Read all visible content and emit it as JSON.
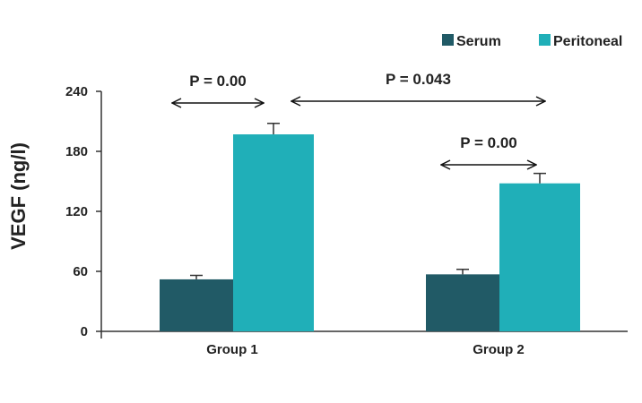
{
  "chart_data": {
    "type": "bar",
    "title": "",
    "xlabel": "",
    "ylabel": "VEGF (ng/l)",
    "ylim": [
      0,
      240
    ],
    "yticks": [
      0,
      60,
      120,
      180,
      240
    ],
    "grid": false,
    "legend_position": "top-right",
    "categories": [
      "Group 1",
      "Group 2"
    ],
    "series": [
      {
        "name": "Serum",
        "color": "#215a66",
        "values": [
          52,
          57
        ],
        "errors": [
          4,
          5
        ]
      },
      {
        "name": "Peritoneal",
        "color": "#20afb8",
        "values": [
          197,
          148
        ],
        "errors": [
          11,
          10
        ]
      }
    ],
    "annotations": [
      {
        "text": "P = 0.00",
        "from": "Group 1 Serum",
        "to": "Group 1 Peritoneal"
      },
      {
        "text": "P = 0.043",
        "from": "Group 1 Peritoneal",
        "to": "Group 2 Peritoneal"
      },
      {
        "text": "P = 0.00",
        "from": "Group 2 Serum",
        "to": "Group 2 Peritoneal"
      }
    ]
  }
}
